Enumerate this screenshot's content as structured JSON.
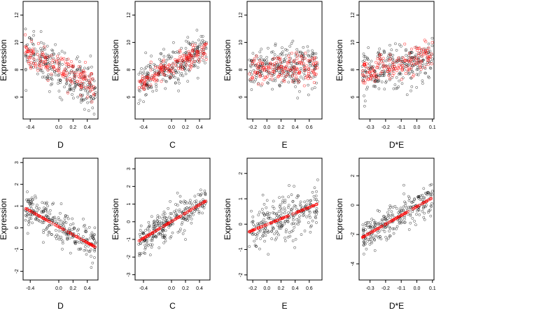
{
  "colors": {
    "observed": "#000000",
    "fitted": "#ff0000",
    "background": "#ffffff"
  },
  "chart_data": [
    {
      "type": "scatter",
      "panel": "top-D",
      "xlabel": "D",
      "ylabel": "Expression",
      "xlim": [
        -0.5,
        0.55
      ],
      "ylim": [
        4.4,
        13
      ],
      "xticks": [
        -0.4,
        0.0,
        0.2,
        0.4
      ],
      "yticks": [
        6,
        8,
        10,
        12
      ],
      "xtick_labels": [
        "-0.4",
        "0.0",
        "0.2",
        "0.4"
      ],
      "ytick_labels": [
        "6",
        "8",
        "10",
        "12"
      ],
      "series": [
        {
          "role": "observed",
          "x_range": [
            -0.47,
            0.52
          ],
          "y_mean_at_min": 9.3,
          "y_mean_at_max": 6.5,
          "y_spread": 1.6
        },
        {
          "role": "fitted",
          "x_range": [
            -0.47,
            0.52
          ],
          "y_mean_at_min": 9.2,
          "y_mean_at_max": 6.8,
          "y_spread": 1.0
        }
      ]
    },
    {
      "type": "scatter",
      "panel": "top-C",
      "xlabel": "C",
      "ylabel": "Expression",
      "xlim": [
        -0.52,
        0.55
      ],
      "ylim": [
        4.4,
        13
      ],
      "xticks": [
        -0.4,
        0.0,
        0.2,
        0.4
      ],
      "yticks": [
        6,
        8,
        10,
        12
      ],
      "xtick_labels": [
        "-0.4",
        "0.0",
        "0.2",
        "0.4"
      ],
      "ytick_labels": [
        "6",
        "8",
        "10",
        "12"
      ],
      "series": [
        {
          "role": "observed",
          "x_range": [
            -0.47,
            0.5
          ],
          "y_mean_at_min": 6.8,
          "y_mean_at_max": 9.6,
          "y_spread": 1.4
        },
        {
          "role": "fitted",
          "x_range": [
            -0.47,
            0.5
          ],
          "y_mean_at_min": 7.0,
          "y_mean_at_max": 9.5,
          "y_spread": 0.7
        }
      ]
    },
    {
      "type": "scatter",
      "panel": "top-E",
      "xlabel": "E",
      "ylabel": "Expression",
      "xlim": [
        -0.28,
        0.78
      ],
      "ylim": [
        4.4,
        13
      ],
      "xticks": [
        -0.2,
        0.0,
        0.2,
        0.4,
        0.6
      ],
      "yticks": [
        6,
        8,
        10,
        12
      ],
      "xtick_labels": [
        "-0.2",
        "0.0",
        "0.2",
        "0.4",
        "0.6"
      ],
      "ytick_labels": [
        "6",
        "8",
        "10",
        "12"
      ],
      "series": [
        {
          "role": "observed",
          "x_range": [
            -0.25,
            0.72
          ],
          "y_mean_at_min": 8.0,
          "y_mean_at_max": 8.3,
          "y_spread": 1.6
        },
        {
          "role": "fitted",
          "x_range": [
            -0.25,
            0.72
          ],
          "y_mean_at_min": 7.9,
          "y_mean_at_max": 8.2,
          "y_spread": 1.0
        }
      ]
    },
    {
      "type": "scatter",
      "panel": "top-DxE",
      "xlabel": "D*E",
      "ylabel": "Expression",
      "xlim": [
        -0.37,
        0.11
      ],
      "ylim": [
        4.4,
        13
      ],
      "xticks": [
        -0.3,
        -0.2,
        -0.1,
        0.0,
        0.1
      ],
      "yticks": [
        6,
        8,
        10,
        12
      ],
      "xtick_labels": [
        "-0.3",
        "-0.2",
        "-0.1",
        "0.0",
        "0.1"
      ],
      "ytick_labels": [
        "6",
        "8",
        "10",
        "12"
      ],
      "series": [
        {
          "role": "observed",
          "x_range": [
            -0.35,
            0.1
          ],
          "y_mean_at_min": 7.8,
          "y_mean_at_max": 8.7,
          "y_spread": 1.5
        },
        {
          "role": "fitted",
          "x_range": [
            -0.35,
            0.1
          ],
          "y_mean_at_min": 7.8,
          "y_mean_at_max": 9.0,
          "y_spread": 1.0
        }
      ]
    },
    {
      "type": "scatter",
      "panel": "bottom-D",
      "xlabel": "D",
      "ylabel": "Expression",
      "xlim": [
        -0.5,
        0.55
      ],
      "ylim": [
        -2.4,
        3.2
      ],
      "xticks": [
        -0.4,
        0.0,
        0.2,
        0.4
      ],
      "yticks": [
        -2,
        -1,
        0,
        1,
        2,
        3
      ],
      "xtick_labels": [
        "-0.4",
        "0.0",
        "0.2",
        "0.4"
      ],
      "ytick_labels": [
        "-2",
        "-1",
        "0",
        "1",
        "2",
        "3"
      ],
      "series": [
        {
          "role": "observed",
          "x_range": [
            -0.47,
            0.52
          ],
          "y_mean_at_min": 0.9,
          "y_mean_at_max": -0.9,
          "y_spread": 0.9
        },
        {
          "role": "fitted",
          "x_range": [
            -0.47,
            0.52
          ],
          "y_mean_at_min": 0.9,
          "y_mean_at_max": -0.9,
          "y_spread": 0.0
        }
      ]
    },
    {
      "type": "scatter",
      "panel": "bottom-C",
      "xlabel": "C",
      "ylabel": "Expression",
      "xlim": [
        -0.52,
        0.55
      ],
      "ylim": [
        -3.3,
        3.6
      ],
      "xticks": [
        -0.4,
        0.0,
        0.2,
        0.4
      ],
      "yticks": [
        -3,
        -2,
        -1,
        0,
        1,
        2,
        3
      ],
      "xtick_labels": [
        "-0.4",
        "0.0",
        "0.2",
        "0.4"
      ],
      "ytick_labels": [
        "-3",
        "-2",
        "-1",
        "0",
        "1",
        "2",
        "3"
      ],
      "series": [
        {
          "role": "observed",
          "x_range": [
            -0.47,
            0.5
          ],
          "y_mean_at_min": -1.1,
          "y_mean_at_max": 1.2,
          "y_spread": 0.9
        },
        {
          "role": "fitted",
          "x_range": [
            -0.47,
            0.5
          ],
          "y_mean_at_min": -1.1,
          "y_mean_at_max": 1.2,
          "y_spread": 0.0
        }
      ]
    },
    {
      "type": "scatter",
      "panel": "bottom-E",
      "xlabel": "E",
      "ylabel": "Expression",
      "xlim": [
        -0.28,
        0.78
      ],
      "ylim": [
        -2.2,
        2.6
      ],
      "xticks": [
        -0.2,
        0.0,
        0.2,
        0.4,
        0.6
      ],
      "yticks": [
        -2,
        -1,
        0,
        1,
        2
      ],
      "xtick_labels": [
        "-0.2",
        "0.0",
        "0.2",
        "0.4",
        "0.6"
      ],
      "ytick_labels": [
        "-2",
        "-1",
        "0",
        "1",
        "2"
      ],
      "series": [
        {
          "role": "observed",
          "x_range": [
            -0.25,
            0.72
          ],
          "y_mean_at_min": -0.3,
          "y_mean_at_max": 0.8,
          "y_spread": 0.9
        },
        {
          "role": "fitted",
          "x_range": [
            -0.25,
            0.72
          ],
          "y_mean_at_min": -0.3,
          "y_mean_at_max": 0.8,
          "y_spread": 0.0
        }
      ]
    },
    {
      "type": "scatter",
      "panel": "bottom-DxE",
      "xlabel": "D*E",
      "ylabel": "Expression",
      "xlim": [
        -0.37,
        0.11
      ],
      "ylim": [
        -5.1,
        3.2
      ],
      "xticks": [
        -0.3,
        -0.2,
        -0.1,
        0.0,
        0.1
      ],
      "yticks": [
        -4,
        -2,
        0,
        2
      ],
      "xtick_labels": [
        "-0.3",
        "-0.2",
        "-0.1",
        "0.0",
        "0.1"
      ],
      "ytick_labels": [
        "-4",
        "-2",
        "0",
        "2"
      ],
      "series": [
        {
          "role": "observed",
          "x_range": [
            -0.35,
            0.1
          ],
          "y_mean_at_min": -2.2,
          "y_mean_at_max": 0.5,
          "y_spread": 1.1
        },
        {
          "role": "fitted",
          "x_range": [
            -0.35,
            0.1
          ],
          "y_mean_at_min": -2.2,
          "y_mean_at_max": 0.5,
          "y_spread": 0.0
        }
      ]
    }
  ]
}
